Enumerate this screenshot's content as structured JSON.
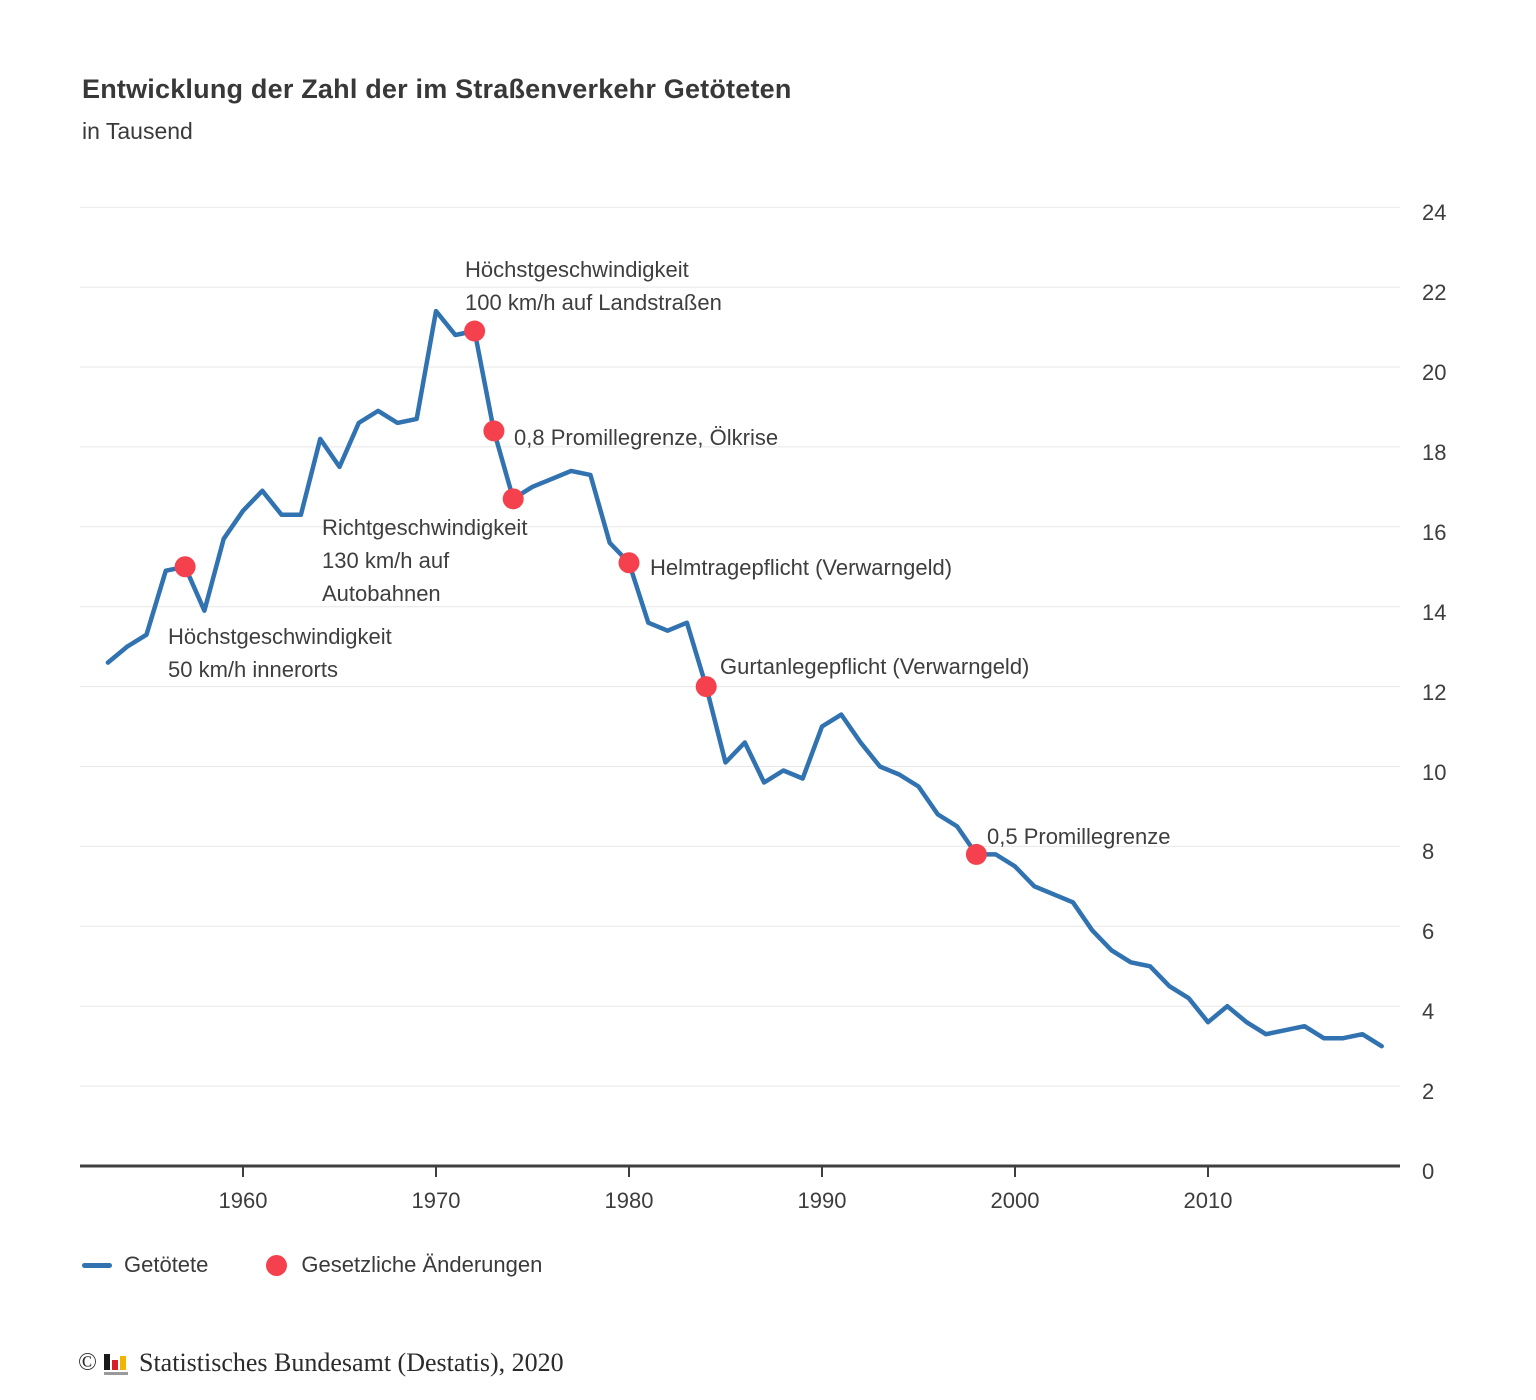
{
  "title": "Entwicklung der Zahl der im Straßenverkehr Getöteten",
  "subtitle": "in Tausend",
  "chart_data": {
    "type": "line",
    "title": "Entwicklung der Zahl der im Straßenverkehr Getöteten",
    "ylabel": "in Tausend",
    "xlabel": "",
    "ylim": [
      0,
      24
    ],
    "xlim": [
      1953,
      2019
    ],
    "grid": "horizontal",
    "y_axis_side": "right",
    "x_ticks": [
      1960,
      1970,
      1980,
      1990,
      2000,
      2010
    ],
    "y_ticks": [
      0,
      2,
      4,
      6,
      8,
      10,
      12,
      14,
      16,
      18,
      20,
      22,
      24
    ],
    "x": [
      1953,
      1954,
      1955,
      1956,
      1957,
      1958,
      1959,
      1960,
      1961,
      1962,
      1963,
      1964,
      1965,
      1966,
      1967,
      1968,
      1969,
      1970,
      1971,
      1972,
      1973,
      1974,
      1975,
      1976,
      1977,
      1978,
      1979,
      1980,
      1981,
      1982,
      1983,
      1984,
      1985,
      1986,
      1987,
      1988,
      1989,
      1990,
      1991,
      1992,
      1993,
      1994,
      1995,
      1996,
      1997,
      1998,
      1999,
      2000,
      2001,
      2002,
      2003,
      2004,
      2005,
      2006,
      2007,
      2008,
      2009,
      2010,
      2011,
      2012,
      2013,
      2014,
      2015,
      2016,
      2017,
      2018,
      2019
    ],
    "series": [
      {
        "name": "Getötete",
        "values": [
          12.6,
          13.0,
          13.3,
          14.9,
          15.0,
          13.9,
          15.7,
          16.4,
          16.9,
          16.3,
          16.3,
          18.2,
          17.5,
          18.6,
          18.9,
          18.6,
          18.7,
          21.4,
          20.8,
          20.9,
          18.4,
          16.7,
          17.0,
          17.2,
          17.4,
          17.3,
          15.6,
          15.1,
          13.6,
          13.4,
          13.6,
          12.0,
          10.1,
          10.6,
          9.6,
          9.9,
          9.7,
          11.0,
          11.3,
          10.6,
          10.0,
          9.8,
          9.5,
          8.8,
          8.5,
          7.8,
          7.8,
          7.5,
          7.0,
          6.8,
          6.6,
          5.9,
          5.4,
          5.1,
          5.0,
          4.5,
          4.2,
          3.6,
          4.0,
          3.6,
          3.3,
          3.4,
          3.5,
          3.2,
          3.2,
          3.3,
          3.0
        ]
      }
    ],
    "annotations": [
      {
        "year": 1957,
        "value": 15.0,
        "label": "Höchstgeschwindigkeit\n50 km/h innerorts"
      },
      {
        "year": 1972,
        "value": 20.9,
        "label": "Höchstgeschwindigkeit\n100 km/h auf Landstraßen"
      },
      {
        "year": 1973,
        "value": 18.4,
        "label": "0,8 Promillegrenze, Ölkrise"
      },
      {
        "year": 1974,
        "value": 16.7,
        "label": "Richtgeschwindigkeit\n130 km/h auf\nAutobahnen"
      },
      {
        "year": 1980,
        "value": 15.1,
        "label": "Helmtragepflicht (Verwarngeld)"
      },
      {
        "year": 1984,
        "value": 12.0,
        "label": "Gurtanlegepflicht (Verwarngeld)"
      },
      {
        "year": 1998,
        "value": 7.8,
        "label": "0,5 Promillegrenze"
      }
    ],
    "colors": {
      "line": "#3172b1",
      "marker": "#f4414d",
      "grid": "#e7e7e7",
      "axis": "#3f3f3f",
      "text": "#3a3a3a"
    },
    "legend_position": "bottom"
  },
  "legend": {
    "items": [
      {
        "label": "Getötete",
        "marker": "line"
      },
      {
        "label": "Gesetzliche Änderungen",
        "marker": "dot"
      }
    ]
  },
  "footer": {
    "copyright_symbol": "©",
    "logo": "destatis-bars-icon",
    "text": "Statistisches Bundesamt (Destatis), 2020"
  }
}
